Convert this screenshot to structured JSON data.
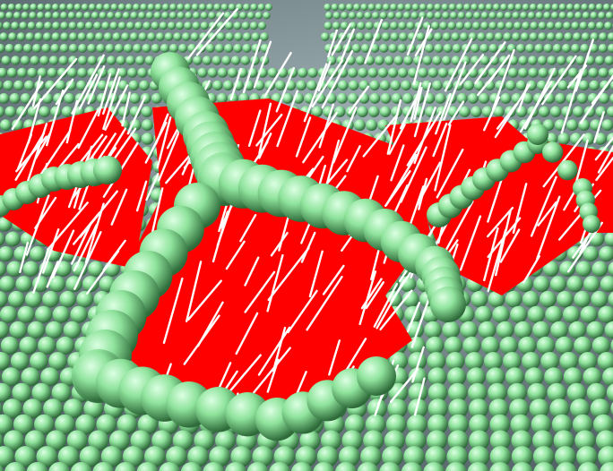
{
  "scene": {
    "kind": "3d-molecular-render",
    "background_color": "#7f9296",
    "sphere_color": "#8fe39c",
    "sphere_highlight": "#dcffe3",
    "sphere_shadow": "#2f6b3a",
    "membrane_color": "#ff0000",
    "vector_color": "#ffffff"
  }
}
